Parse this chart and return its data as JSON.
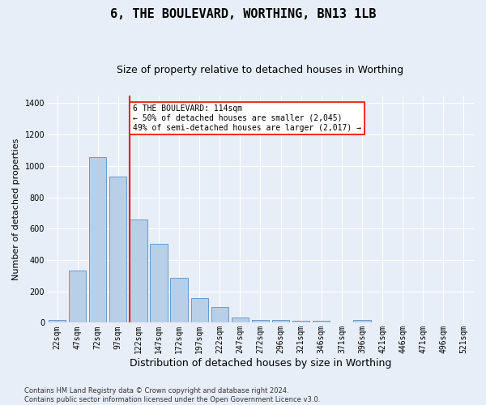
{
  "title": "6, THE BOULEVARD, WORTHING, BN13 1LB",
  "subtitle": "Size of property relative to detached houses in Worthing",
  "xlabel": "Distribution of detached houses by size in Worthing",
  "ylabel": "Number of detached properties",
  "footer_line1": "Contains HM Land Registry data © Crown copyright and database right 2024.",
  "footer_line2": "Contains public sector information licensed under the Open Government Licence v3.0.",
  "categories": [
    "22sqm",
    "47sqm",
    "72sqm",
    "97sqm",
    "122sqm",
    "147sqm",
    "172sqm",
    "197sqm",
    "222sqm",
    "247sqm",
    "272sqm",
    "296sqm",
    "321sqm",
    "346sqm",
    "371sqm",
    "396sqm",
    "421sqm",
    "446sqm",
    "471sqm",
    "496sqm",
    "521sqm"
  ],
  "values": [
    20,
    335,
    1055,
    930,
    660,
    505,
    285,
    155,
    100,
    35,
    20,
    20,
    15,
    10,
    0,
    18,
    0,
    0,
    0,
    0,
    0
  ],
  "bar_color": "#b8cfe8",
  "bar_edge_color": "#5a8fc2",
  "vline_color": "red",
  "vline_xindex": 3.57,
  "annotation_text": "6 THE BOULEVARD: 114sqm\n← 50% of detached houses are smaller (2,045)\n49% of semi-detached houses are larger (2,017) →",
  "ylim": [
    0,
    1450
  ],
  "yticks": [
    0,
    200,
    400,
    600,
    800,
    1000,
    1200,
    1400
  ],
  "bg_color": "#e8eef8",
  "grid_color": "white",
  "title_fontsize": 11,
  "subtitle_fontsize": 9,
  "tick_fontsize": 7,
  "ylabel_fontsize": 8,
  "xlabel_fontsize": 9
}
